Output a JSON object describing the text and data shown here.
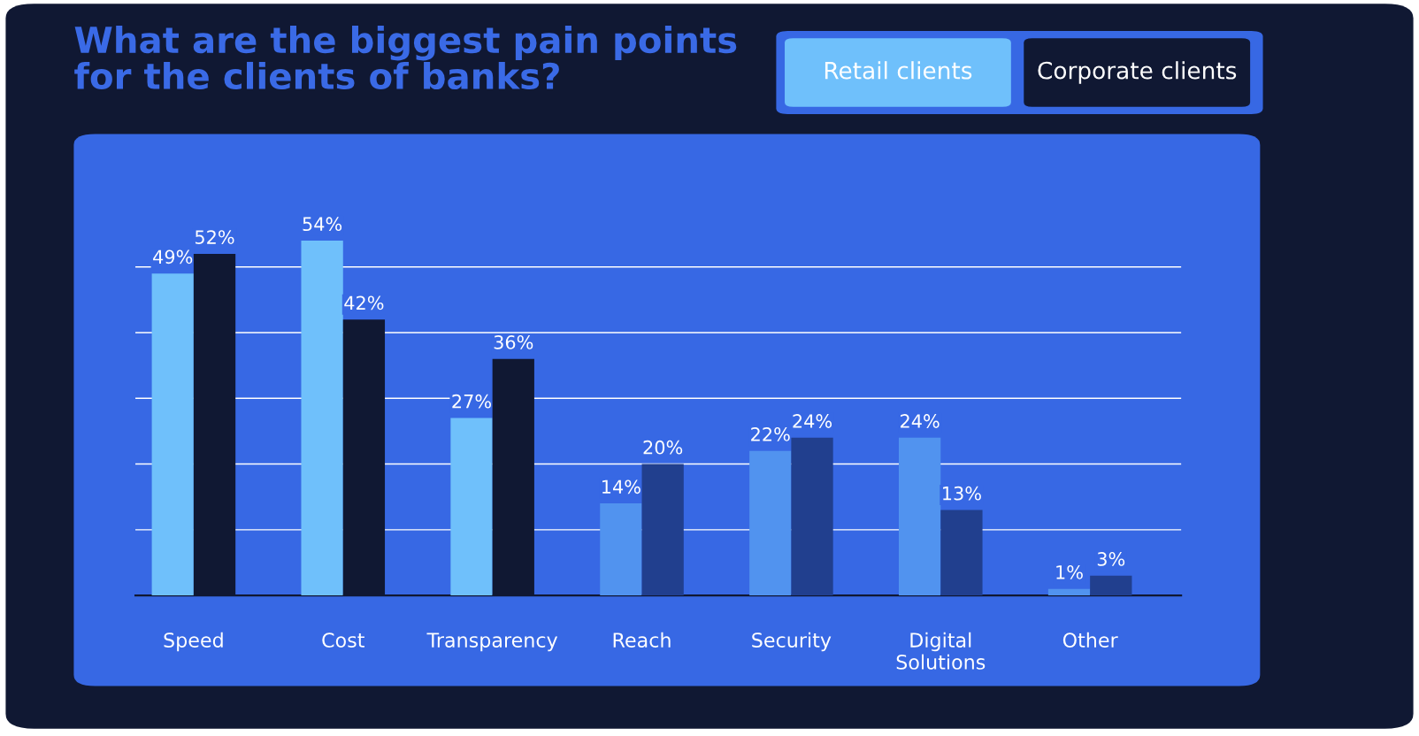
{
  "chart_data": {
    "type": "bar",
    "title": "What are the biggest pain points\nfor the clients of banks?",
    "categories": [
      "Speed",
      "Cost",
      "Transparency",
      "Reach",
      "Security",
      "Digital\nSolutions",
      "Other"
    ],
    "series": [
      {
        "name": "Retail clients",
        "color": "#6fc0fb",
        "colors": [
          "#6fc0fb",
          "#6fc0fb",
          "#6fc0fb",
          "#5193ef",
          "#5193ef",
          "#5193ef",
          "#5193ef"
        ],
        "values": [
          49,
          54,
          27,
          14,
          22,
          24,
          1
        ],
        "value_labels": [
          "49%",
          "54%",
          "27%",
          "14%",
          "22%",
          "24%",
          "1%"
        ]
      },
      {
        "name": "Corporate clients",
        "color": "#101833",
        "colors": [
          "#101833",
          "#101833",
          "#101833",
          "#213f8e",
          "#213f8e",
          "#213f8e",
          "#213f8e"
        ],
        "values": [
          52,
          42,
          36,
          20,
          24,
          13,
          3
        ],
        "value_labels": [
          "52%",
          "42%",
          "36%",
          "20%",
          "24%",
          "13%",
          "3%"
        ]
      }
    ],
    "grid": "y",
    "tick_labels": "x",
    "legend": "top right"
  }
}
